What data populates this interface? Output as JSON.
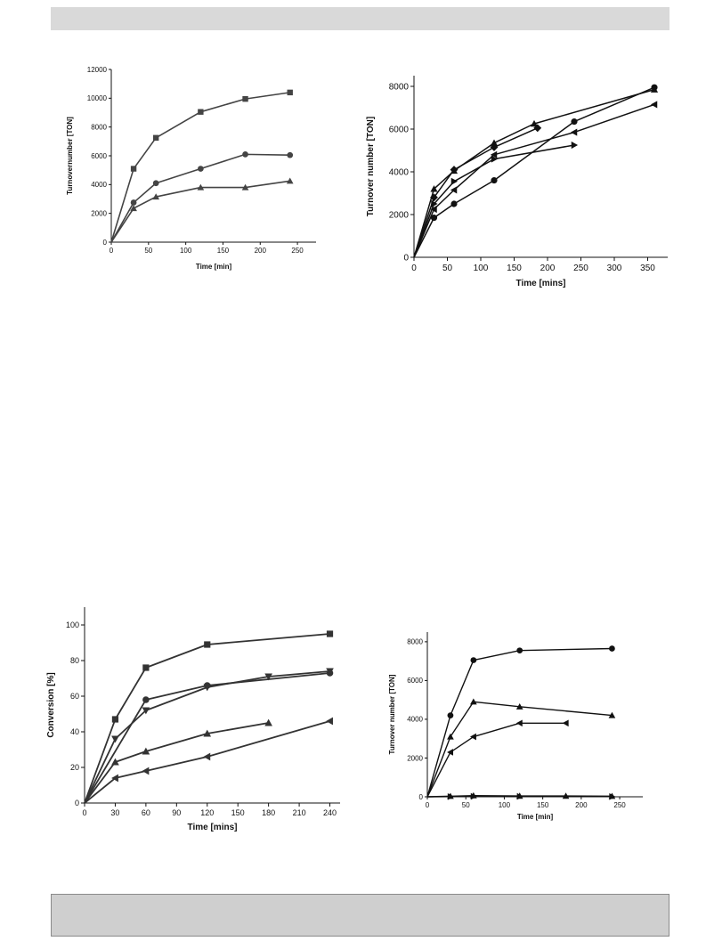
{
  "chart_data": [
    {
      "type": "line",
      "xlabel": "Time [min]",
      "ylabel": "Turnovernumber [TON]",
      "xlim": [
        0,
        275
      ],
      "ylim": [
        0,
        12000
      ],
      "xticks": [
        0,
        50,
        100,
        150,
        200,
        250
      ],
      "yticks": [
        0,
        2000,
        4000,
        6000,
        8000,
        10000,
        12000
      ],
      "color": "#444444",
      "series": [
        {
          "marker": "square",
          "x": [
            0,
            30,
            60,
            120,
            180,
            240
          ],
          "y": [
            0,
            5100,
            7250,
            9050,
            9950,
            10400
          ]
        },
        {
          "marker": "circle",
          "x": [
            0,
            30,
            60,
            120,
            180,
            240
          ],
          "y": [
            0,
            2750,
            4100,
            5100,
            6100,
            6050
          ]
        },
        {
          "marker": "triangle",
          "x": [
            0,
            30,
            60,
            120,
            180,
            240
          ],
          "y": [
            0,
            2350,
            3150,
            3800,
            3800,
            4250
          ]
        }
      ]
    },
    {
      "type": "line",
      "xlabel": "Time [mins]",
      "ylabel": "Turnover number [TON]",
      "xlim": [
        0,
        380
      ],
      "ylim": [
        0,
        8500
      ],
      "xticks": [
        0,
        50,
        100,
        150,
        200,
        250,
        300,
        350
      ],
      "yticks": [
        0,
        2000,
        4000,
        6000,
        8000
      ],
      "color": "#111111",
      "series": [
        {
          "marker": "circle",
          "x": [
            0,
            30,
            60,
            120,
            240,
            360
          ],
          "y": [
            0,
            1850,
            2500,
            3600,
            6350,
            7950
          ]
        },
        {
          "marker": "triangle",
          "x": [
            0,
            30,
            60,
            120,
            180,
            360
          ],
          "y": [
            0,
            3200,
            4050,
            5350,
            6250,
            7850
          ]
        },
        {
          "marker": "diamond",
          "x": [
            0,
            30,
            60,
            120,
            185
          ],
          "y": [
            0,
            2800,
            4100,
            5150,
            6050
          ]
        },
        {
          "marker": "triangle-right",
          "x": [
            0,
            30,
            60,
            120,
            240
          ],
          "y": [
            0,
            2500,
            3550,
            4600,
            5250
          ]
        },
        {
          "marker": "triangle-left",
          "x": [
            0,
            30,
            60,
            120,
            240,
            360
          ],
          "y": [
            0,
            2250,
            3150,
            4800,
            5850,
            7150
          ]
        }
      ]
    },
    {
      "type": "line",
      "xlabel": "Time [mins]",
      "ylabel": "Conversion [%]",
      "xlim": [
        0,
        250
      ],
      "ylim": [
        0,
        110
      ],
      "xticks": [
        0,
        30,
        60,
        90,
        120,
        150,
        180,
        210,
        240
      ],
      "yticks": [
        0,
        20,
        40,
        60,
        80,
        100
      ],
      "color": "#333333",
      "series": [
        {
          "marker": "square",
          "x": [
            0,
            30,
            60,
            120,
            240
          ],
          "y": [
            0,
            47,
            76,
            89,
            95
          ]
        },
        {
          "marker": "circle",
          "x": [
            0,
            60,
            120,
            240
          ],
          "y": [
            0,
            58,
            66,
            73
          ]
        },
        {
          "marker": "triangle-down",
          "x": [
            0,
            30,
            60,
            120,
            180,
            240
          ],
          "y": [
            0,
            36,
            52,
            65,
            71,
            74
          ]
        },
        {
          "marker": "triangle",
          "x": [
            0,
            30,
            60,
            120,
            180
          ],
          "y": [
            0,
            23,
            29,
            39,
            45
          ]
        },
        {
          "marker": "triangle-left",
          "x": [
            0,
            30,
            60,
            120,
            240
          ],
          "y": [
            0,
            14,
            18,
            26,
            46
          ]
        }
      ]
    },
    {
      "type": "line",
      "xlabel": "Time [min]",
      "ylabel": "Turnover number [TON]",
      "xlim": [
        0,
        280
      ],
      "ylim": [
        0,
        8500
      ],
      "xticks": [
        0,
        50,
        100,
        150,
        200,
        250
      ],
      "yticks": [
        0,
        2000,
        4000,
        6000,
        8000
      ],
      "color": "#111111",
      "series": [
        {
          "marker": "circle",
          "x": [
            0,
            30,
            60,
            120,
            240
          ],
          "y": [
            0,
            4200,
            7050,
            7550,
            7650
          ]
        },
        {
          "marker": "triangle",
          "x": [
            0,
            30,
            60,
            120,
            240
          ],
          "y": [
            0,
            3100,
            4900,
            4650,
            4200
          ]
        },
        {
          "marker": "triangle-left",
          "x": [
            0,
            30,
            60,
            120,
            180
          ],
          "y": [
            0,
            2300,
            3100,
            3800,
            3800
          ]
        },
        {
          "marker": "triangle",
          "x": [
            0,
            30,
            60,
            120,
            180,
            240
          ],
          "y": [
            0,
            30,
            60,
            40,
            40,
            30
          ]
        },
        {
          "marker": "triangle-right",
          "x": [
            0,
            30,
            60,
            120,
            240
          ],
          "y": [
            0,
            10,
            20,
            20,
            10
          ]
        }
      ]
    }
  ]
}
